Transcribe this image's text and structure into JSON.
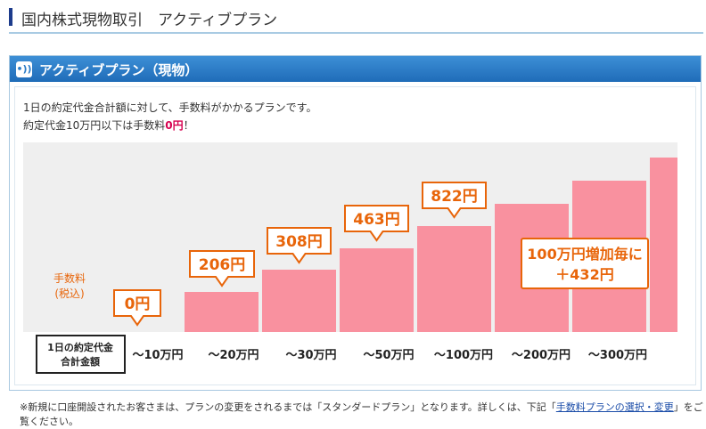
{
  "header": {
    "title": "国内株式現物取引　アクティブプラン"
  },
  "panel": {
    "title": "アクティブプラン（現物）",
    "intro": "1日の約定代金合計額に対して、手数料がかかるプランです。",
    "note_prefix": "約定代金10万円以下は手数料",
    "note_emphasis": "0円",
    "note_suffix": "！"
  },
  "chart": {
    "axis_label": [
      "手数料",
      "(税込)"
    ],
    "row_label": [
      "1日の約定代金",
      "合計金額"
    ],
    "categories": [
      "〜10万円",
      "〜20万円",
      "〜30万円",
      "〜50万円",
      "〜100万円",
      "〜200万円",
      "〜300万円"
    ],
    "callouts": [
      "0円",
      "206円",
      "308円",
      "463円",
      "822円"
    ],
    "increment": [
      "100万円増加毎に",
      "＋432円"
    ]
  },
  "footnote": {
    "before": "※新規に口座開設されたお客さまは、プランの変更をされるまでは「スタンダードプラン」となります。詳しくは、下記「",
    "link": "手数料プランの選択・変更",
    "after": "」をご覧ください。"
  }
}
